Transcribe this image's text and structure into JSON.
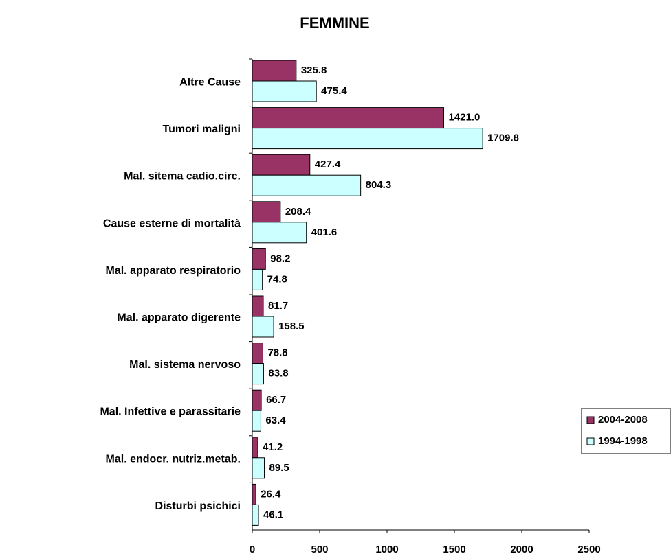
{
  "chart_data": {
    "type": "bar",
    "orientation": "horizontal",
    "title": "FEMMINE",
    "categories": [
      "Altre Cause",
      "Tumori maligni",
      "Mal. sitema cadio.circ.",
      "Cause esterne di mortalità",
      "Mal. apparato respiratorio",
      "Mal. apparato digerente",
      "Mal. sistema nervoso",
      "Mal. Infettive e parassitarie",
      "Mal. endocr. nutriz.metab.",
      "Disturbi psichici"
    ],
    "series": [
      {
        "name": "2004-2008",
        "color": "#993366",
        "values": [
          325.8,
          1421.0,
          427.4,
          208.4,
          98.2,
          81.7,
          78.8,
          66.7,
          41.2,
          26.4
        ],
        "value_labels": [
          "325.8",
          "1421.0",
          "427.4",
          "208.4",
          "98.2",
          "81.7",
          "78.8",
          "66.7",
          "41.2",
          "26.4"
        ]
      },
      {
        "name": "1994-1998",
        "color": "#ccffff",
        "values": [
          475.4,
          1709.8,
          804.3,
          401.6,
          74.8,
          158.5,
          83.8,
          63.4,
          89.5,
          46.1
        ],
        "value_labels": [
          "475.4",
          "1709.8",
          "804.3",
          "401.6",
          "74.8",
          "158.5",
          "83.8",
          "63.4",
          "89.5",
          "46.1"
        ]
      }
    ],
    "xlim": [
      0,
      2500
    ],
    "xticks": [
      0,
      500,
      1000,
      1500,
      2000,
      2500
    ],
    "legend": "right"
  }
}
